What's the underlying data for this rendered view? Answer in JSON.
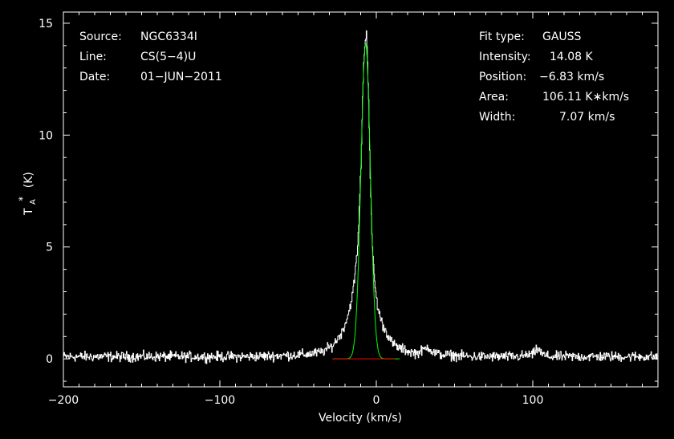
{
  "chart_data": {
    "type": "line",
    "xlabel": "Velocity (km/s)",
    "ylabel_main": "T",
    "ylabel_sup": "*",
    "ylabel_sub": "A",
    "ylabel_unit": "(K)",
    "xlim": [
      -200,
      180
    ],
    "ylim": [
      -1.25,
      15.5
    ],
    "xticks": [
      -200,
      -100,
      0,
      100
    ],
    "xtick_labels": [
      "−200",
      "−100",
      "0",
      "100"
    ],
    "yticks": [
      0,
      5,
      10,
      15
    ],
    "ytick_labels": [
      "0",
      "5",
      "10",
      "15"
    ],
    "grid": false,
    "info_left": [
      {
        "key": "Source:",
        "value": "NGC6334I"
      },
      {
        "key": "Line:",
        "value": "CS(5−4)U"
      },
      {
        "key": "Date:",
        "value": "01−JUN−2011"
      }
    ],
    "info_right": [
      {
        "key": "Fit type:",
        "value": "GAUSS"
      },
      {
        "key": "Intensity:",
        "value": "14.08 K"
      },
      {
        "key": "Position:",
        "value": "−6.83 km/s"
      },
      {
        "key": "Area:",
        "value": "106.11 K∗km/s"
      },
      {
        "key": "Width:",
        "value": "7.07 km/s"
      }
    ],
    "fit": {
      "amplitude": 14.08,
      "center": -6.83,
      "fwhm": 7.07
    },
    "baseline": {
      "y": 0,
      "x_from": -28,
      "x_to": 12
    },
    "series": [
      {
        "style": "steps",
        "x": [
          -200,
          -180,
          -160,
          -140,
          -120,
          -100,
          -80,
          -60,
          -45,
          -35,
          -28,
          -22,
          -18,
          -15,
          -12,
          -10,
          -9,
          -8,
          -7,
          -6.5,
          -6,
          -5,
          -4,
          -3,
          -1,
          1,
          4,
          7,
          10,
          14,
          18,
          22,
          26,
          30,
          33,
          36,
          40,
          50,
          60,
          70,
          80,
          90,
          100,
          103,
          106,
          110,
          120,
          130,
          140,
          150,
          160,
          170,
          180
        ],
        "y": [
          0.1,
          0.1,
          0.1,
          0.1,
          0.1,
          0.1,
          0.1,
          0.15,
          0.2,
          0.3,
          0.6,
          1.2,
          2.0,
          3.0,
          5.0,
          8.5,
          11.5,
          13.5,
          14.4,
          14.7,
          13.9,
          11.5,
          8.0,
          5.5,
          3.2,
          2.2,
          1.5,
          1.1,
          0.7,
          0.5,
          0.4,
          0.3,
          0.25,
          0.4,
          0.55,
          0.3,
          0.2,
          0.15,
          0.1,
          0.1,
          0.1,
          0.1,
          0.2,
          0.45,
          0.2,
          0.1,
          0.1,
          0.1,
          0.1,
          0.1,
          0.1,
          0.1,
          0.1
        ]
      }
    ],
    "colors": {
      "spectrum": "#ffffff",
      "fit": "#00ff00",
      "baseline": "#ff0000",
      "frame": "#ffffff"
    }
  }
}
